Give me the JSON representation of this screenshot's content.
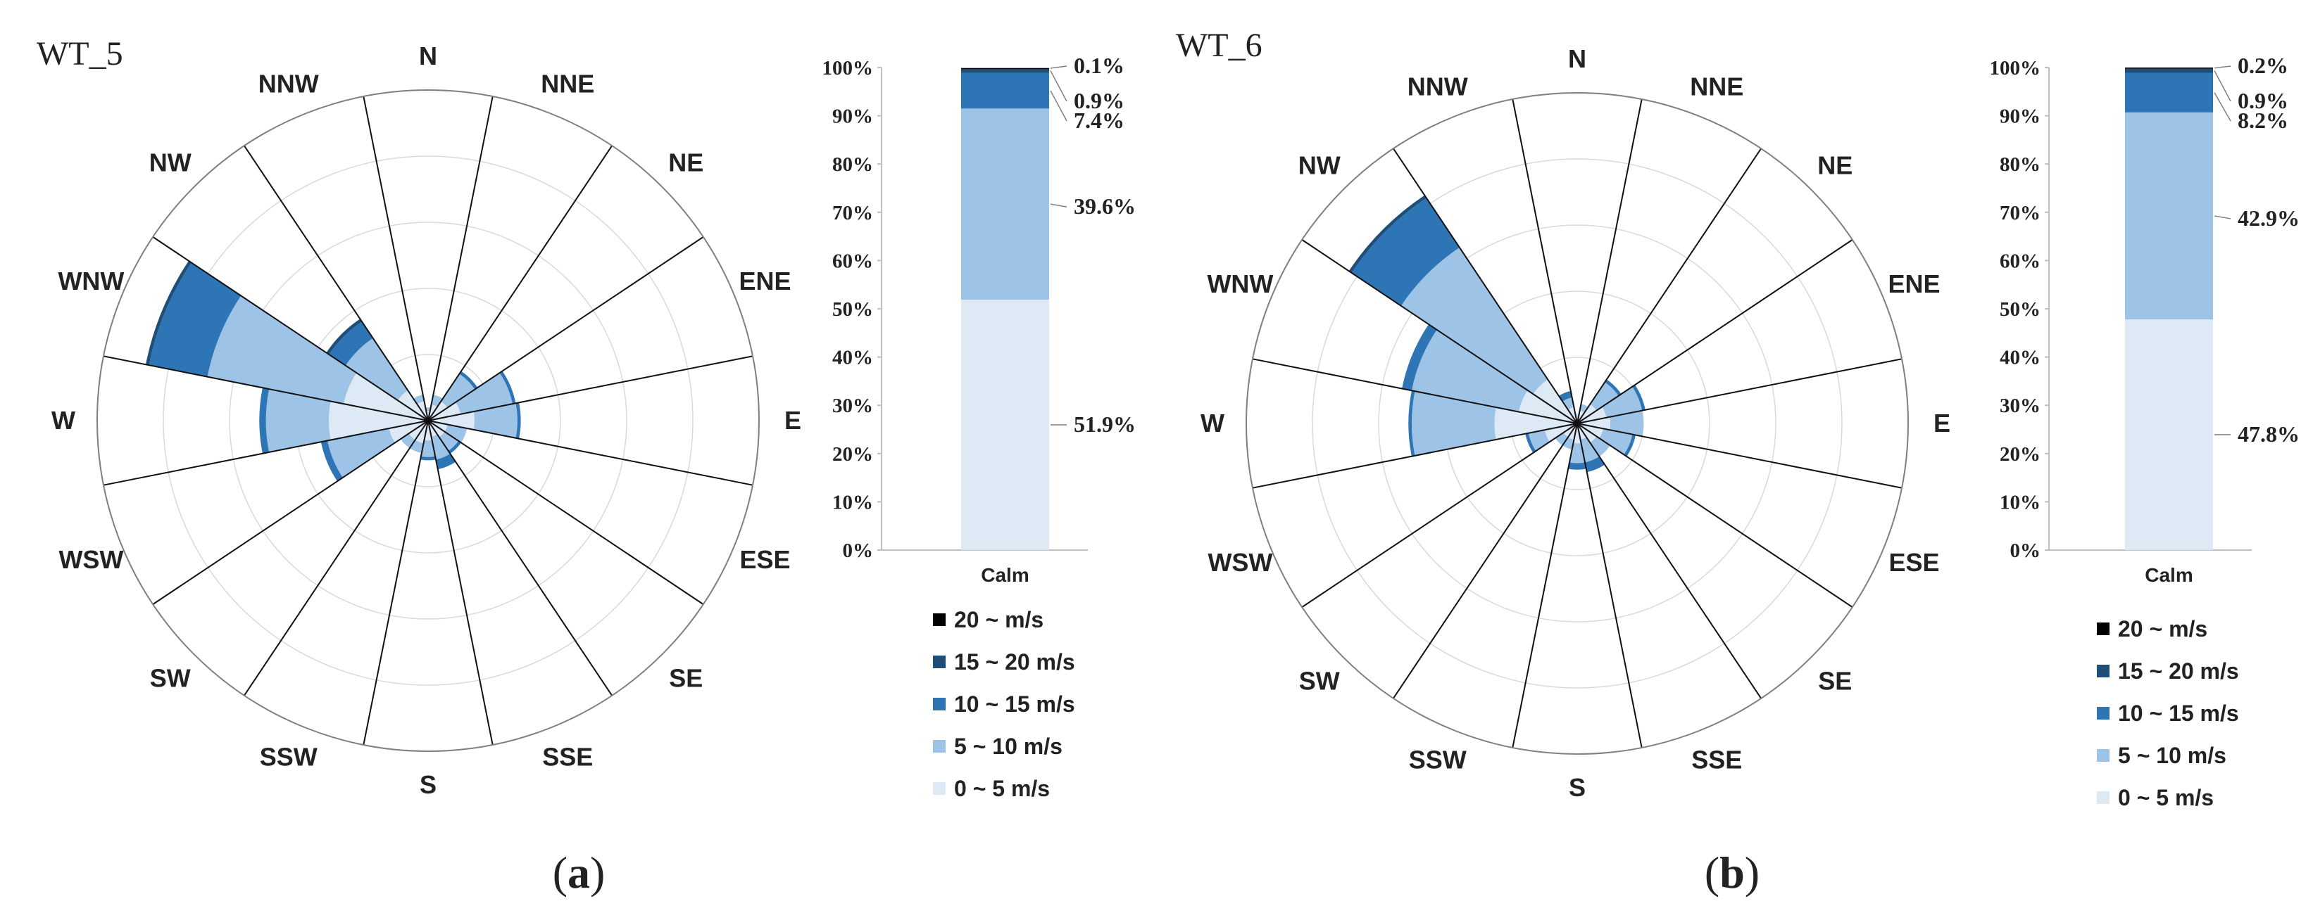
{
  "figure": {
    "speed_classes": [
      "0 ~ 5 m/s",
      "5 ~ 10 m/s",
      "10 ~ 15 m/s",
      "15 ~ 20 m/s",
      "20 ~ m/s"
    ],
    "colors": [
      "#dde9f5",
      "#9dc3e6",
      "#2e75b6",
      "#1f4e79",
      "#000000"
    ]
  },
  "chart_data": [
    {
      "type": "wind-rose",
      "title": "WT_5",
      "caption_letter": "a",
      "directions": [
        "N",
        "NNE",
        "NE",
        "ENE",
        "E",
        "ESE",
        "SE",
        "SSE",
        "S",
        "SSW",
        "SW",
        "WSW",
        "W",
        "WNW",
        "NW",
        "NNW"
      ],
      "radial_max": 1.0,
      "radial_rings": 5,
      "series": [
        {
          "name": "0 ~ 5 m/s",
          "values": [
            0.03,
            0.05,
            0.07,
            0.1,
            0.14,
            0.06,
            0.06,
            0.05,
            0.06,
            0.07,
            0.07,
            0.12,
            0.3,
            0.26,
            0.11,
            0.06
          ]
        },
        {
          "name": "5 ~ 10 m/s",
          "values": [
            0.01,
            0.03,
            0.1,
            0.16,
            0.13,
            0.06,
            0.05,
            0.07,
            0.05,
            0.03,
            0.03,
            0.19,
            0.19,
            0.42,
            0.19,
            0.02
          ]
        },
        {
          "name": "10 ~ 15 m/s",
          "values": [
            0.0,
            0.0,
            0.01,
            0.01,
            0.01,
            0.0,
            0.01,
            0.03,
            0.01,
            0.0,
            0.0,
            0.02,
            0.02,
            0.18,
            0.06,
            0.0
          ]
        },
        {
          "name": "15 ~ 20 m/s",
          "values": [
            0.0,
            0.0,
            0.0,
            0.0,
            0.0,
            0.0,
            0.0,
            0.0,
            0.0,
            0.0,
            0.0,
            0.0,
            0.0,
            0.01,
            0.01,
            0.0
          ]
        },
        {
          "name": "20 ~ m/s",
          "values": [
            0.0,
            0.0,
            0.0,
            0.0,
            0.0,
            0.0,
            0.0,
            0.0,
            0.0,
            0.0,
            0.0,
            0.0,
            0.0,
            0.0,
            0.0,
            0.0
          ]
        }
      ],
      "calm_bar": {
        "category": "Calm",
        "ylim": [
          0,
          100
        ],
        "yticks": [
          "0%",
          "10%",
          "20%",
          "30%",
          "40%",
          "50%",
          "60%",
          "70%",
          "80%",
          "90%",
          "100%"
        ],
        "values": [
          51.9,
          39.6,
          7.4,
          0.9,
          0.1
        ],
        "labels": [
          "51.9%",
          "39.6%",
          "7.4%",
          "0.9%",
          "0.1%"
        ]
      }
    },
    {
      "type": "wind-rose",
      "title": "WT_6",
      "caption_letter": "b",
      "directions": [
        "N",
        "NNE",
        "NE",
        "ENE",
        "E",
        "ESE",
        "SE",
        "SSE",
        "S",
        "SSW",
        "SW",
        "WSW",
        "W",
        "WNW",
        "NW",
        "NNW"
      ],
      "radial_max": 1.0,
      "radial_rings": 5,
      "series": [
        {
          "name": "0 ~ 5 m/s",
          "values": [
            0.03,
            0.04,
            0.07,
            0.09,
            0.1,
            0.08,
            0.07,
            0.05,
            0.06,
            0.05,
            0.05,
            0.1,
            0.25,
            0.18,
            0.16,
            0.05
          ]
        },
        {
          "name": "5 ~ 10 m/s",
          "values": [
            0.0,
            0.02,
            0.08,
            0.11,
            0.1,
            0.09,
            0.05,
            0.07,
            0.06,
            0.03,
            0.03,
            0.05,
            0.25,
            0.33,
            0.48,
            0.03
          ]
        },
        {
          "name": "10 ~ 15 m/s",
          "values": [
            0.0,
            0.0,
            0.01,
            0.01,
            0.0,
            0.01,
            0.0,
            0.03,
            0.02,
            0.0,
            0.0,
            0.01,
            0.01,
            0.03,
            0.18,
            0.02
          ]
        },
        {
          "name": "15 ~ 20 m/s",
          "values": [
            0.0,
            0.0,
            0.0,
            0.0,
            0.0,
            0.0,
            0.0,
            0.0,
            0.0,
            0.0,
            0.0,
            0.0,
            0.0,
            0.0,
            0.01,
            0.0
          ]
        },
        {
          "name": "20 ~ m/s",
          "values": [
            0.0,
            0.0,
            0.0,
            0.0,
            0.0,
            0.0,
            0.0,
            0.0,
            0.0,
            0.0,
            0.0,
            0.0,
            0.0,
            0.0,
            0.0,
            0.0
          ]
        }
      ],
      "calm_bar": {
        "category": "Calm",
        "ylim": [
          0,
          100
        ],
        "yticks": [
          "0%",
          "10%",
          "20%",
          "30%",
          "40%",
          "50%",
          "60%",
          "70%",
          "80%",
          "90%",
          "100%"
        ],
        "values": [
          47.8,
          42.9,
          8.2,
          0.9,
          0.2
        ],
        "labels": [
          "47.8%",
          "42.9%",
          "8.2%",
          "0.9%",
          "0.2%"
        ]
      }
    }
  ]
}
